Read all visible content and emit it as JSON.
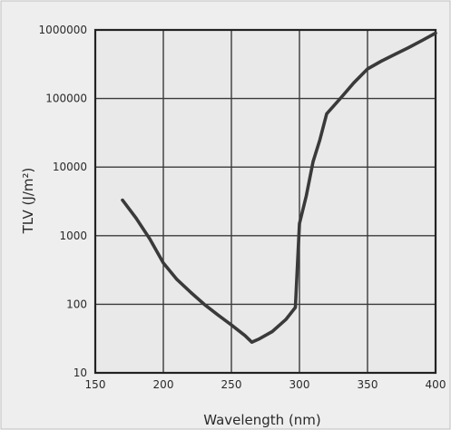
{
  "chart_data": {
    "type": "line",
    "title": "",
    "xlabel": "Wavelength (nm)",
    "ylabel": "TLV (J/m²)",
    "xscale": "linear",
    "yscale": "log",
    "xlim": [
      150,
      400
    ],
    "ylim": [
      10,
      1000000
    ],
    "x_ticks": [
      "150",
      "200",
      "250",
      "300",
      "350",
      "400"
    ],
    "y_ticks": [
      "10",
      "100",
      "1000",
      "10000",
      "100000",
      "1000000"
    ],
    "grid": true,
    "legend": "none",
    "colors": {
      "background": "#eeeeee",
      "plot_area": "#e9e9e9",
      "grid": "#3a3a3a",
      "line": "#3a3a3a",
      "text": "#2a2a2a",
      "border": "#bdbdbd"
    },
    "series": [
      {
        "x": [
          170,
          180,
          190,
          200,
          210,
          220,
          230,
          240,
          250,
          260,
          265,
          270,
          280,
          290,
          297,
          300,
          305,
          310,
          315,
          320,
          330,
          340,
          350,
          360,
          370,
          380,
          390,
          400
        ],
        "values": [
          3300,
          1800,
          900,
          400,
          230,
          150,
          100,
          70,
          50,
          35,
          28,
          31,
          40,
          60,
          90,
          1500,
          3800,
          12000,
          25000,
          60000,
          100000,
          170000,
          270000,
          350000,
          440000,
          550000,
          700000,
          900000
        ]
      }
    ]
  }
}
